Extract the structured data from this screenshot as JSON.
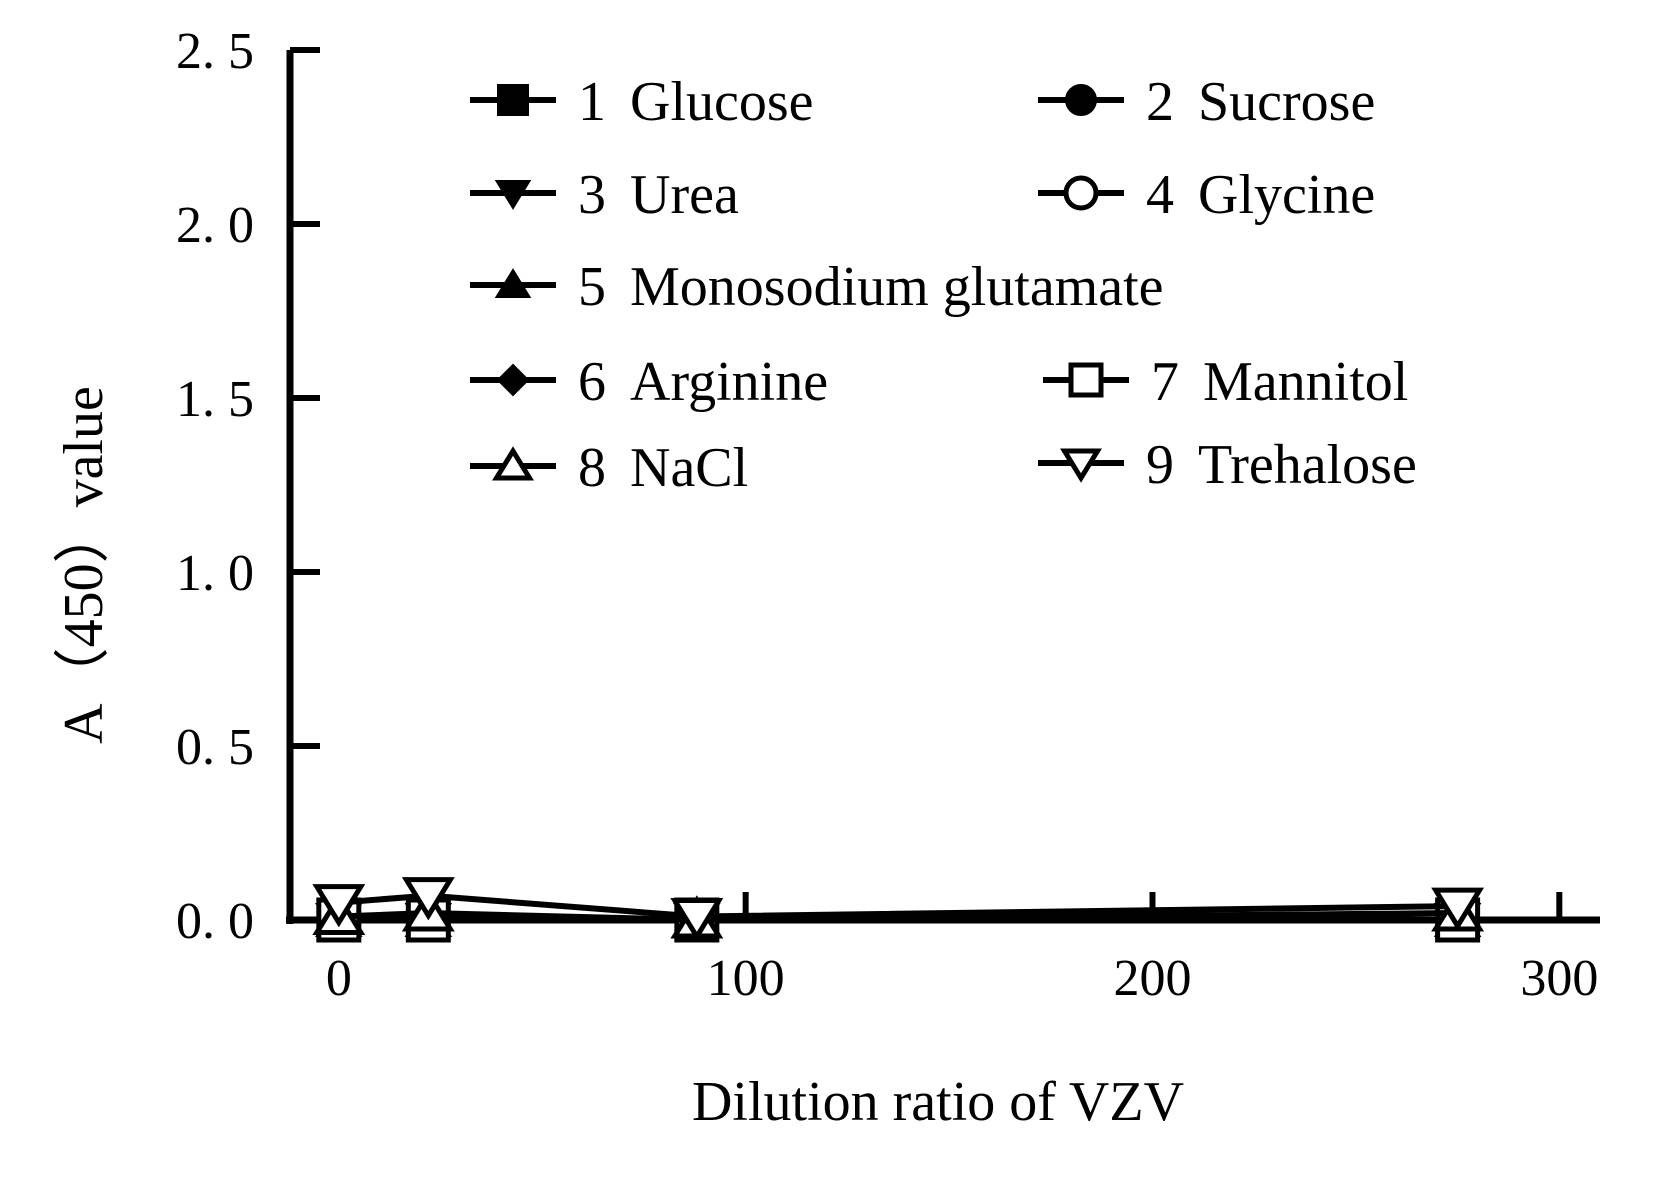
{
  "chart_data": {
    "type": "line",
    "title": "",
    "xlabel": "Dilution ratio of VZV",
    "ylabel": "A（450）value",
    "xlim": [
      -12,
      310
    ],
    "ylim": [
      0,
      2.5
    ],
    "x_ticks": [
      0,
      100,
      200,
      300
    ],
    "x_tick_labels": [
      "0",
      "100",
      "200",
      "300"
    ],
    "y_ticks": [
      0,
      0.5,
      1.0,
      1.5,
      2.0,
      2.5
    ],
    "y_tick_labels": [
      "0. 0",
      "0. 5",
      "1. 0",
      "1. 5",
      "2. 0",
      "2. 5"
    ],
    "grid": false,
    "legend_position": "top",
    "x": [
      0,
      22,
      88,
      275
    ],
    "series": [
      {
        "id": 1,
        "name": "Glucose",
        "marker": "square-filled",
        "values": [
          0.0,
          0.0,
          0.0,
          0.0
        ]
      },
      {
        "id": 2,
        "name": "Sucrose",
        "marker": "circle-filled",
        "values": [
          0.0,
          0.0,
          0.0,
          0.0
        ]
      },
      {
        "id": 3,
        "name": "Urea",
        "marker": "triangle-down-filled",
        "values": [
          0.0,
          0.0,
          0.0,
          0.0
        ]
      },
      {
        "id": 4,
        "name": "Glycine",
        "marker": "circle-open",
        "values": [
          0.0,
          0.0,
          0.0,
          0.0
        ]
      },
      {
        "id": 5,
        "name": "Monosodium glutamate",
        "marker": "triangle-up-filled",
        "values": [
          0.0,
          0.0,
          0.0,
          0.0
        ]
      },
      {
        "id": 6,
        "name": "Arginine",
        "marker": "diamond-filled",
        "values": [
          0.0,
          0.0,
          0.0,
          0.0
        ]
      },
      {
        "id": 7,
        "name": "Mannitol",
        "marker": "square-open",
        "values": [
          0.0,
          0.0,
          0.0,
          0.0
        ]
      },
      {
        "id": 8,
        "name": "NaCl",
        "marker": "triangle-up-open",
        "values": [
          0.01,
          0.02,
          0.0,
          0.02
        ]
      },
      {
        "id": 9,
        "name": "Trehalose",
        "marker": "triangle-down-open",
        "values": [
          0.05,
          0.07,
          0.01,
          0.04
        ]
      }
    ],
    "legend": {
      "items": [
        {
          "number": "1",
          "label": "Glucose"
        },
        {
          "number": "2",
          "label": "Sucrose"
        },
        {
          "number": "3",
          "label": "Urea"
        },
        {
          "number": "4",
          "label": "Glycine"
        },
        {
          "number": "5",
          "label": "Monosodium glutamate"
        },
        {
          "number": "6",
          "label": "Arginine"
        },
        {
          "number": "7",
          "label": "Mannitol"
        },
        {
          "number": "8",
          "label": "NaCl"
        },
        {
          "number": "9",
          "label": "Trehalose"
        }
      ]
    }
  }
}
